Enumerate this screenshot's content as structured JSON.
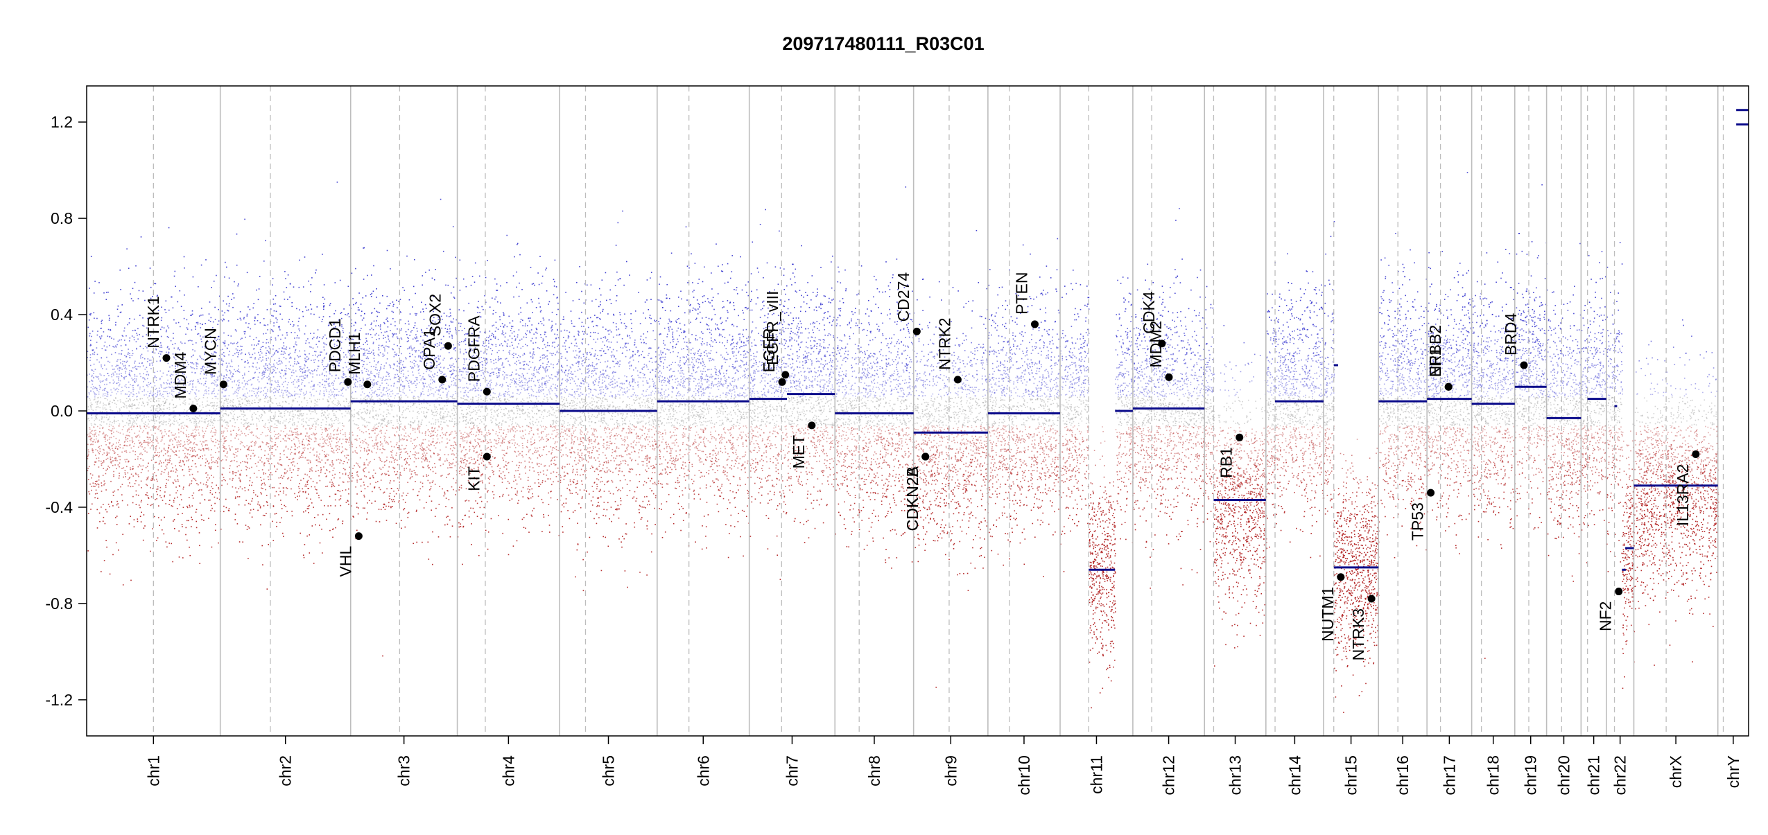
{
  "chart_data": {
    "type": "scatter",
    "title": "209717480111_R03C01",
    "xlabel": "",
    "ylabel": "",
    "ylim": [
      -1.35,
      1.35
    ],
    "yticks": [
      -1.2,
      -0.8,
      -0.4,
      0.0,
      0.4,
      0.8,
      1.2
    ],
    "ytick_labels": [
      "-1.2",
      "-0.8",
      "-0.4",
      "0.0",
      "0.4",
      "0.8",
      "1.2"
    ],
    "grid": false,
    "colors": {
      "gain": "#3a3ad0",
      "loss": "#b22222",
      "neutral": "#9a9a9a",
      "segment": "#0a0a8a",
      "chrom_border": "#bdbdbd",
      "centromere": "#bdbdbd"
    },
    "chromosomes": [
      {
        "name": "chr1",
        "start": 0,
        "end": 248,
        "centromere": 124
      },
      {
        "name": "chr2",
        "start": 248,
        "end": 490,
        "centromere": 341
      },
      {
        "name": "chr3",
        "start": 490,
        "end": 688,
        "centromere": 581
      },
      {
        "name": "chr4",
        "start": 688,
        "end": 878,
        "centromere": 740
      },
      {
        "name": "chr5",
        "start": 878,
        "end": 1059,
        "centromere": 926
      },
      {
        "name": "chr6",
        "start": 1059,
        "end": 1230,
        "centromere": 1118
      },
      {
        "name": "chr7",
        "start": 1230,
        "end": 1389,
        "centromere": 1290
      },
      {
        "name": "chr8",
        "start": 1389,
        "end": 1535,
        "centromere": 1434
      },
      {
        "name": "chr9",
        "start": 1535,
        "end": 1673,
        "centromere": 1601
      },
      {
        "name": "chr10",
        "start": 1673,
        "end": 1807,
        "centromere": 1713
      },
      {
        "name": "chr11",
        "start": 1807,
        "end": 1942,
        "centromere": 1860
      },
      {
        "name": "chr12",
        "start": 1942,
        "end": 2075,
        "centromere": 1977
      },
      {
        "name": "chr13",
        "start": 2075,
        "end": 2189,
        "centromere": 2092
      },
      {
        "name": "chr14",
        "start": 2189,
        "end": 2296,
        "centromere": 2206
      },
      {
        "name": "chr15",
        "start": 2296,
        "end": 2398,
        "centromere": 2315
      },
      {
        "name": "chr16",
        "start": 2398,
        "end": 2488,
        "centromere": 2434
      },
      {
        "name": "chr17",
        "start": 2488,
        "end": 2571,
        "centromere": 2513
      },
      {
        "name": "chr18",
        "start": 2571,
        "end": 2651,
        "centromere": 2589
      },
      {
        "name": "chr19",
        "start": 2651,
        "end": 2710,
        "centromere": 2677
      },
      {
        "name": "chr20",
        "start": 2710,
        "end": 2774,
        "centromere": 2738
      },
      {
        "name": "chr21",
        "start": 2774,
        "end": 2821,
        "centromere": 2786
      },
      {
        "name": "chr22",
        "start": 2821,
        "end": 2872,
        "centromere": 2836
      },
      {
        "name": "chrX",
        "start": 2872,
        "end": 3028,
        "centromere": 2932
      },
      {
        "name": "chrY",
        "start": 3028,
        "end": 3085,
        "centromere": 3038
      }
    ],
    "segments": [
      {
        "chrom": "chr1",
        "x0": 0,
        "x1": 248,
        "y": -0.01
      },
      {
        "chrom": "chr2",
        "x0": 248,
        "x1": 490,
        "y": 0.01
      },
      {
        "chrom": "chr3",
        "x0": 490,
        "x1": 688,
        "y": 0.04
      },
      {
        "chrom": "chr4",
        "x0": 688,
        "x1": 878,
        "y": 0.03
      },
      {
        "chrom": "chr5",
        "x0": 878,
        "x1": 1059,
        "y": 0.0
      },
      {
        "chrom": "chr6",
        "x0": 1059,
        "x1": 1230,
        "y": 0.04
      },
      {
        "chrom": "chr7",
        "x0": 1230,
        "x1": 1300,
        "y": 0.05
      },
      {
        "chrom": "chr7",
        "x0": 1300,
        "x1": 1389,
        "y": 0.07
      },
      {
        "chrom": "chr8",
        "x0": 1389,
        "x1": 1535,
        "y": -0.01
      },
      {
        "chrom": "chr9",
        "x0": 1535,
        "x1": 1673,
        "y": -0.09
      },
      {
        "chrom": "chr10",
        "x0": 1673,
        "x1": 1807,
        "y": -0.01
      },
      {
        "chrom": "chr11",
        "x0": 1860,
        "x1": 1909,
        "y": -0.66
      },
      {
        "chrom": "chr11",
        "x0": 1909,
        "x1": 1942,
        "y": 0.0
      },
      {
        "chrom": "chr12",
        "x0": 1942,
        "x1": 2075,
        "y": 0.01
      },
      {
        "chrom": "chr13",
        "x0": 2092,
        "x1": 2189,
        "y": -0.37
      },
      {
        "chrom": "chr14",
        "x0": 2206,
        "x1": 2296,
        "y": 0.04
      },
      {
        "chrom": "chr15",
        "x0": 2315,
        "x1": 2323,
        "y": 0.19
      },
      {
        "chrom": "chr15",
        "x0": 2315,
        "x1": 2398,
        "y": -0.65
      },
      {
        "chrom": "chr16",
        "x0": 2398,
        "x1": 2488,
        "y": 0.04
      },
      {
        "chrom": "chr17",
        "x0": 2488,
        "x1": 2571,
        "y": 0.05
      },
      {
        "chrom": "chr18",
        "x0": 2571,
        "x1": 2651,
        "y": 0.03
      },
      {
        "chrom": "chr19",
        "x0": 2651,
        "x1": 2710,
        "y": 0.1
      },
      {
        "chrom": "chr20",
        "x0": 2710,
        "x1": 2774,
        "y": -0.03
      },
      {
        "chrom": "chr21",
        "x0": 2786,
        "x1": 2821,
        "y": 0.05
      },
      {
        "chrom": "chr22",
        "x0": 2836,
        "x1": 2841,
        "y": 0.02
      },
      {
        "chrom": "chr22",
        "x0": 2850,
        "x1": 2857,
        "y": -0.66
      },
      {
        "chrom": "chr22",
        "x0": 2856,
        "x1": 2872,
        "y": -0.57
      },
      {
        "chrom": "chrX",
        "x0": 2872,
        "x1": 3028,
        "y": -0.31
      },
      {
        "chrom": "chrY",
        "x0": 3062,
        "x1": 3085,
        "y": 1.25
      },
      {
        "chrom": "chrY",
        "x0": 3062,
        "x1": 3085,
        "y": 1.19
      }
    ],
    "genes": [
      {
        "name": "NTRK1",
        "x": 148,
        "y": 0.22
      },
      {
        "name": "MDM4",
        "x": 198,
        "y": 0.01
      },
      {
        "name": "MYCN",
        "x": 254,
        "y": 0.11
      },
      {
        "name": "PDCD1",
        "x": 485,
        "y": 0.12
      },
      {
        "name": "MLH1",
        "x": 521,
        "y": 0.11
      },
      {
        "name": "VHL",
        "x": 505,
        "y": -0.52
      },
      {
        "name": "OPA1",
        "x": 660,
        "y": 0.13
      },
      {
        "name": "SOX2",
        "x": 671,
        "y": 0.27
      },
      {
        "name": "PDGFRA",
        "x": 743,
        "y": 0.08
      },
      {
        "name": "KIT",
        "x": 743,
        "y": -0.19
      },
      {
        "name": "EGFR",
        "x": 1291,
        "y": 0.12
      },
      {
        "name": "EGFR_vIII",
        "x": 1297,
        "y": 0.15
      },
      {
        "name": "MET",
        "x": 1346,
        "y": -0.06
      },
      {
        "name": "CD274",
        "x": 1541,
        "y": 0.33
      },
      {
        "name": "CDKN2A",
        "x": 1557,
        "y": -0.19
      },
      {
        "name": "CDKN2B",
        "x": 1557,
        "y": -0.19
      },
      {
        "name": "NTRK2",
        "x": 1617,
        "y": 0.13
      },
      {
        "name": "PTEN",
        "x": 1760,
        "y": 0.36
      },
      {
        "name": "CDK4",
        "x": 1996,
        "y": 0.28
      },
      {
        "name": "MDM2",
        "x": 2009,
        "y": 0.14
      },
      {
        "name": "RB1",
        "x": 2140,
        "y": -0.11
      },
      {
        "name": "NUTM1",
        "x": 2328,
        "y": -0.69
      },
      {
        "name": "NTRK3",
        "x": 2385,
        "y": -0.78
      },
      {
        "name": "TP53",
        "x": 2495,
        "y": -0.34
      },
      {
        "name": "NF1",
        "x": 2528,
        "y": 0.1
      },
      {
        "name": "ERBB2",
        "x": 2528,
        "y": 0.1
      },
      {
        "name": "BRD4",
        "x": 2668,
        "y": 0.19
      },
      {
        "name": "NF2",
        "x": 2844,
        "y": -0.75
      },
      {
        "name": "IL13RA2",
        "x": 2987,
        "y": -0.18
      }
    ]
  }
}
